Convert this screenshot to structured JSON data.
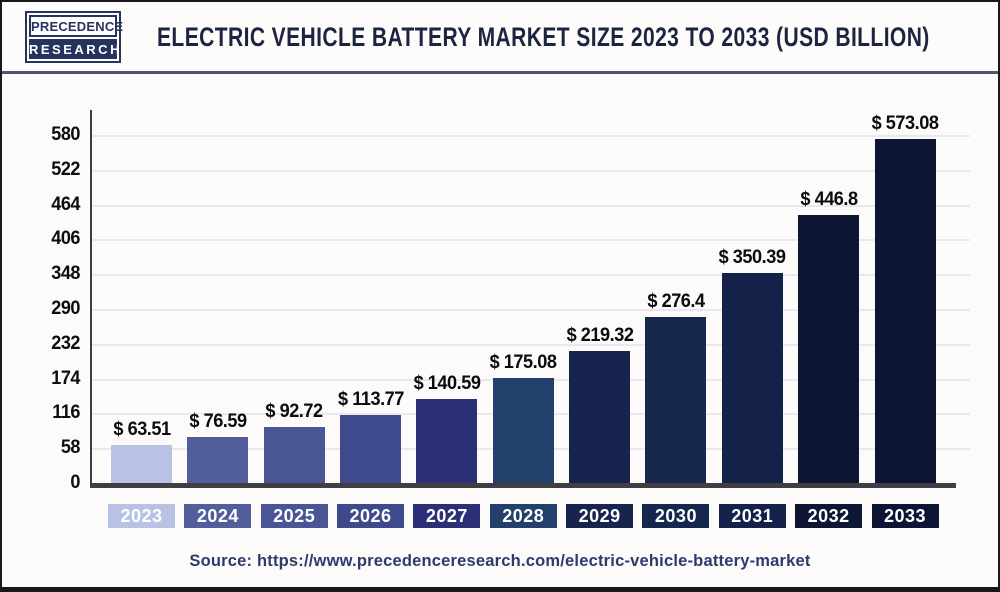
{
  "header": {
    "logo_line1": "PRECEDENCE",
    "logo_line2": "RESEARCH",
    "title": "ELECTRIC VEHICLE BATTERY MARKET SIZE 2023 TO 2033 (USD BILLION)"
  },
  "chart_data": {
    "type": "bar",
    "title": "Electric Vehicle Battery Market Size 2023 to 2033 (USD Billion)",
    "unit": "USD Billion",
    "categories": [
      "2023",
      "2024",
      "2025",
      "2026",
      "2027",
      "2028",
      "2029",
      "2030",
      "2031",
      "2032",
      "2033"
    ],
    "values": [
      63.51,
      76.59,
      92.72,
      113.77,
      140.59,
      175.08,
      219.32,
      276.4,
      350.39,
      446.8,
      573.08
    ],
    "value_labels": [
      "$ 63.51",
      "$ 76.59",
      "$ 92.72",
      "$ 113.77",
      "$ 140.59",
      "$ 175.08",
      "$ 219.32",
      "$ 276.4",
      "$ 350.39",
      "$ 446.8",
      "$ 573.08"
    ],
    "bar_colors": [
      "#b8c2e5",
      "#525e9b",
      "#4a5596",
      "#3f4a8d",
      "#2b2f76",
      "#23406a",
      "#17254e",
      "#16274d",
      "#14224a",
      "#0d1733",
      "#0c1634"
    ],
    "y_ticks": [
      0,
      58,
      116,
      174,
      232,
      290,
      348,
      406,
      464,
      522,
      580
    ],
    "ylim": [
      0,
      580
    ],
    "xlabel": "",
    "ylabel": "",
    "grid": "horizontal",
    "legend": "none"
  },
  "footer": {
    "source": "Source: https://www.precedenceresearch.com/electric-vehicle-battery-market"
  },
  "colors": {
    "accent_navy": "#27335f",
    "title_text": "#1d2441",
    "header_divider": "#50536f",
    "axis": "#3e3e44",
    "gridline": "#e9e8ee",
    "tick_text": "#0d0d10",
    "year_text": "#ffffff",
    "source_text": "#2c3a6e",
    "page_border": "#17171c",
    "background": "#fcfbf9"
  }
}
